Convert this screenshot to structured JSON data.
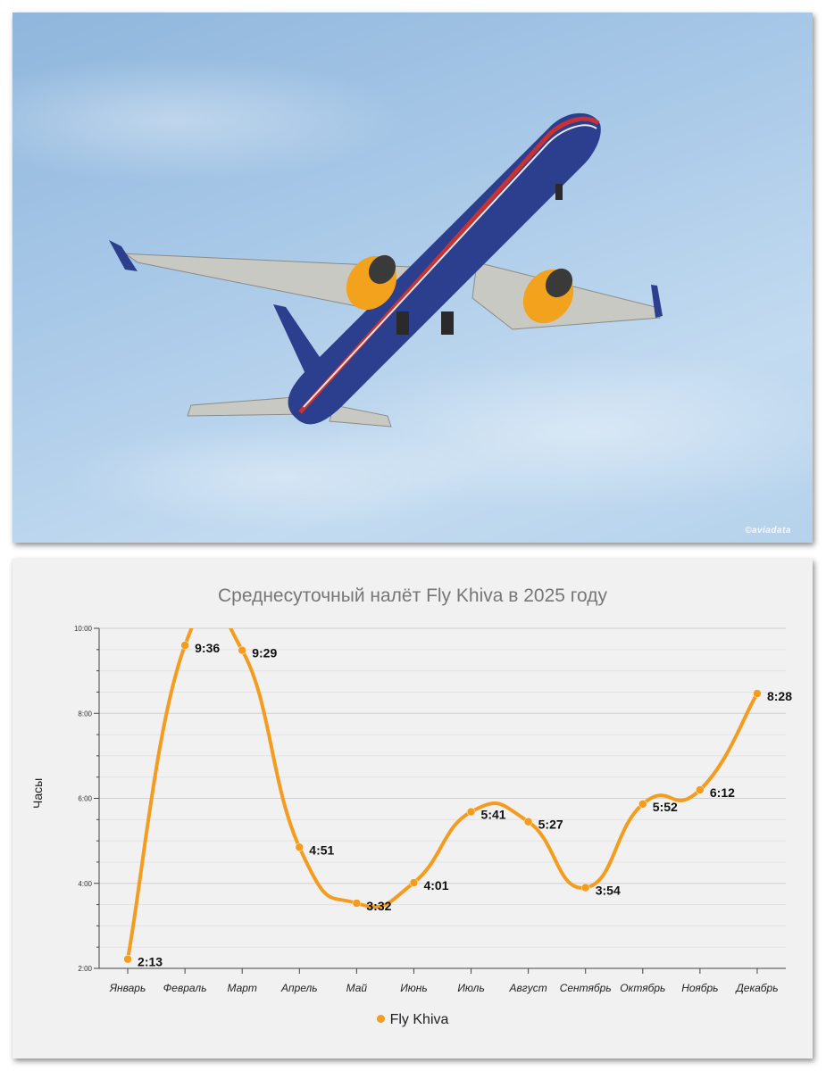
{
  "photo": {
    "watermark": "©aviadata",
    "colors": {
      "fuselage": "#2c3f8e",
      "stripe_red": "#c83232",
      "engine": "#f2a21c",
      "wing": "#c9c9c4"
    }
  },
  "colors": {
    "series": "#f39c1f",
    "title": "#777777",
    "grid": "#d8d8d8"
  },
  "chart_data": {
    "type": "line",
    "title": "Среднесуточный налёт Fly Khiva в 2025 году",
    "xlabel": "",
    "ylabel": "Часы",
    "ylim": [
      2,
      10
    ],
    "yticks": [
      "2:00",
      "4:00",
      "6:00",
      "8:00",
      "10:00"
    ],
    "categories": [
      "Январь",
      "Февраль",
      "Март",
      "Апрель",
      "Май",
      "Июнь",
      "Июль",
      "Август",
      "Сентябрь",
      "Октябрь",
      "Ноябрь",
      "Декабрь"
    ],
    "series": [
      {
        "name": "Fly Khiva",
        "values": [
          2.2167,
          9.6,
          9.4833,
          4.85,
          3.5333,
          4.0167,
          5.6833,
          5.45,
          3.9,
          5.8667,
          6.2,
          8.4667
        ],
        "labels": [
          "2:13",
          "9:36",
          "9:29",
          "4:51",
          "3:32",
          "4:01",
          "5:41",
          "5:27",
          "3:54",
          "5:52",
          "6:12",
          "8:28"
        ]
      }
    ],
    "grid": true,
    "smooth": true,
    "legend": "bottom-center"
  }
}
